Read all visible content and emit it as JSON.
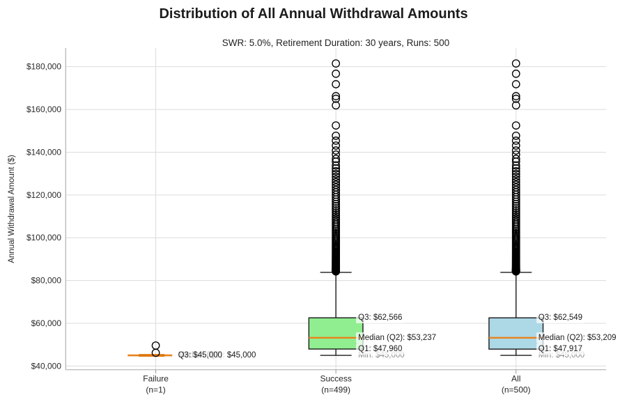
{
  "chart_data": {
    "type": "box",
    "title": "Distribution of All Annual Withdrawal Amounts",
    "subtitle": "SWR: 5.0%, Retirement Duration: 30 years, Runs: 500",
    "ylabel": "Annual Withdrawal Amount ($)",
    "ylim": [
      38275,
      188690
    ],
    "grid": true,
    "legend": "none",
    "y_ticks": [
      {
        "value": 40000,
        "label": "$40,000"
      },
      {
        "value": 60000,
        "label": "$60,000"
      },
      {
        "value": 80000,
        "label": "$80,000"
      },
      {
        "value": 100000,
        "label": "$100,000"
      },
      {
        "value": 120000,
        "label": "$120,000"
      },
      {
        "value": 140000,
        "label": "$140,000"
      },
      {
        "value": 160000,
        "label": "$160,000"
      },
      {
        "value": 180000,
        "label": "$180,000"
      }
    ],
    "colors": {
      "median_line": "#e8831d",
      "median_line_dark": "#de7912",
      "grid": "#dcdcdc",
      "spine": "#b0b0b0",
      "tick_mark": "#999999",
      "box_edge": "#1a1a1a",
      "annotation_text": "#1a1a1a",
      "annotation_muted": "#8c8c8c",
      "annotation_bg": "rgba(255,255,255,0.72)"
    },
    "series": [
      {
        "label": "Failure",
        "sub_label": "(n=1)",
        "collapsed": true,
        "box_color": "#ffd9a0",
        "stats": {
          "whisker_low": 45000,
          "q1": 45000,
          "median": 45000,
          "q3": 45000,
          "whisker_high": 45000
        },
        "outliers": [
          49600,
          46200
        ],
        "dense_outliers": null,
        "annotations": [
          {
            "text": "Q3: $45,000",
            "value": 45000,
            "muted": false
          },
          {
            "text": "Median (Q2): $45,000",
            "value": 45000,
            "muted": false
          },
          {
            "text": "Q1: $45,000",
            "value": 45000,
            "muted": false
          },
          {
            "text": "Min: $45,000",
            "value": 45000,
            "muted": true
          }
        ]
      },
      {
        "label": "Success",
        "sub_label": "(n=499)",
        "collapsed": false,
        "box_color": "#90ee90",
        "stats": {
          "whisker_low": 45000,
          "q1": 47960,
          "median": 53237,
          "q3": 62566,
          "whisker_high": 83800
        },
        "outliers": [
          181500,
          176700,
          171800,
          166200,
          165000,
          161900,
          152500,
          147700,
          145400,
          143100,
          140800,
          138900,
          136900,
          135600
        ],
        "dense_outliers": {
          "min": 84300,
          "max": 133800,
          "count": 95,
          "power": 2.6
        },
        "annotations": [
          {
            "text": "Q3: $62,566",
            "value": 62566,
            "muted": false
          },
          {
            "text": "Median (Q2): $53,237",
            "value": 53237,
            "muted": false
          },
          {
            "text": "Q1: $47,960",
            "value": 47960,
            "muted": false
          },
          {
            "text": "Min: $45,000",
            "value": 45000,
            "muted": true
          }
        ]
      },
      {
        "label": "All",
        "sub_label": "(n=500)",
        "collapsed": false,
        "box_color": "#add8e6",
        "stats": {
          "whisker_low": 45000,
          "q1": 47917,
          "median": 53209,
          "q3": 62549,
          "whisker_high": 83800
        },
        "outliers": [
          181500,
          176700,
          171800,
          166200,
          165000,
          161900,
          152500,
          147700,
          145400,
          143100,
          140800,
          138900,
          136900,
          135600
        ],
        "dense_outliers": {
          "min": 84300,
          "max": 133800,
          "count": 95,
          "power": 2.6
        },
        "annotations": [
          {
            "text": "Q3: $62,549",
            "value": 62549,
            "muted": false
          },
          {
            "text": "Median (Q2): $53,209",
            "value": 53209,
            "muted": false
          },
          {
            "text": "Q1: $47,917",
            "value": 47917,
            "muted": false
          },
          {
            "text": "Min: $45,000",
            "value": 45000,
            "muted": true
          }
        ]
      }
    ]
  }
}
